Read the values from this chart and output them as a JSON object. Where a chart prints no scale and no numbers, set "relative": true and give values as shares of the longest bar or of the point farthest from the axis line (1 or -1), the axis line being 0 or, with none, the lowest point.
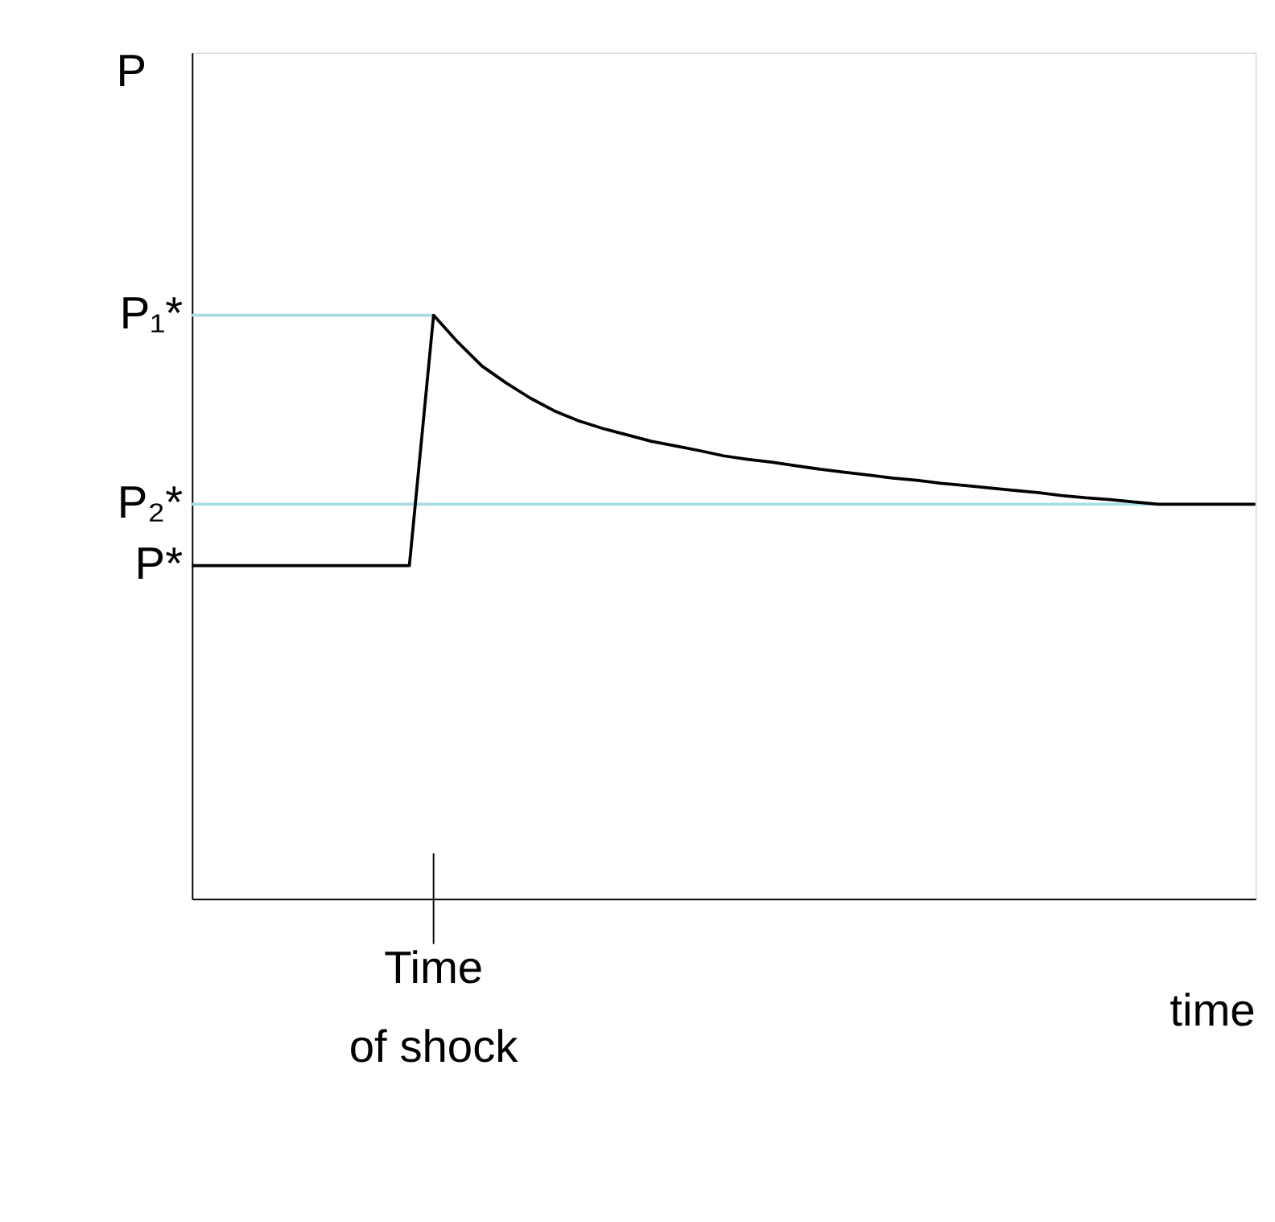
{
  "chart_data": {
    "type": "line",
    "relative": true,
    "ylabel": "P",
    "xlabel": "time",
    "categories": [
      null,
      null,
      null,
      null,
      null,
      null,
      null,
      null,
      null,
      null,
      null,
      null,
      null,
      null,
      null,
      null,
      null,
      null,
      null,
      null,
      null,
      null,
      null,
      null,
      null,
      null,
      null,
      null,
      null,
      null,
      null,
      null,
      null,
      null,
      null,
      null,
      null,
      null,
      null,
      null,
      null,
      null,
      null,
      null,
      null
    ],
    "annotations": [
      "Time of shock"
    ],
    "grid": false,
    "marker": "none",
    "line_style": "solid",
    "series": [
      {
        "name": "P₁*",
        "color": "#a8dce4",
        "values": [
          1,
          1,
          1,
          1,
          1,
          1,
          1,
          1,
          1,
          1,
          1,
          null,
          null,
          null,
          null,
          null,
          null,
          null,
          null,
          null,
          null,
          null,
          null,
          null,
          null,
          null,
          null,
          null,
          null,
          null,
          null,
          null,
          null,
          null,
          null,
          null,
          null,
          null,
          null,
          null,
          null,
          null,
          null,
          null,
          null
        ]
      },
      {
        "name": "P₂*",
        "color": "#a8dce4",
        "values": [
          0.676,
          0.676,
          0.676,
          0.676,
          0.676,
          0.676,
          0.676,
          0.676,
          0.676,
          0.676,
          0.676,
          0.676,
          0.676,
          0.676,
          0.676,
          0.676,
          0.676,
          0.676,
          0.676,
          0.676,
          0.676,
          0.676,
          0.676,
          0.676,
          0.676,
          0.676,
          0.676,
          0.676,
          0.676,
          0.676,
          0.676,
          0.676,
          0.676,
          0.676,
          0.676,
          0.676,
          0.676,
          0.676,
          0.676,
          0.676,
          0.676,
          null,
          null,
          null,
          null
        ]
      },
      {
        "name": "P*",
        "color": "#000000",
        "values": [
          0.571,
          0.571,
          0.571,
          0.571,
          0.571,
          0.571,
          0.571,
          0.571,
          0.571,
          0.571,
          1,
          0.954,
          0.913,
          0.884,
          0.858,
          0.836,
          0.819,
          0.806,
          0.795,
          0.784,
          0.776,
          0.768,
          0.759,
          0.753,
          0.748,
          0.742,
          0.736,
          0.731,
          0.726,
          0.721,
          0.717,
          0.712,
          0.708,
          0.704,
          0.7,
          0.696,
          0.691,
          0.687,
          0.684,
          0.68,
          0.676,
          0.676,
          0.676,
          0.676,
          0.676
        ]
      }
    ]
  }
}
